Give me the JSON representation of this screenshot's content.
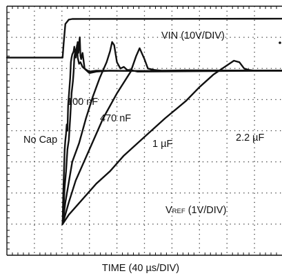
{
  "chart_data": {
    "type": "line",
    "xlabel": "TIME (40 µs/DIV)",
    "x_unit": "µs",
    "x_per_div": 40,
    "divisions": {
      "x": 10,
      "y": 8
    },
    "xlim": [
      0,
      400
    ],
    "grid": true,
    "trace_color": "#111111",
    "annotations": {
      "vin_label": "VIN (10V/DIV)",
      "vref_main": "V",
      "vref_sub": "REF",
      "vref_rest": " (1V/DIV)",
      "curve_labels": [
        "No Cap",
        "100 nF",
        "470 nF",
        "1 µF",
        "2.2 µF"
      ]
    },
    "series": [
      {
        "name": "VIN (10V/DIV)",
        "unit": "V",
        "ylim": [
          -70,
          10
        ],
        "points": [
          [
            0,
            -6.5
          ],
          [
            81,
            -6.5
          ],
          [
            82.5,
            -2
          ],
          [
            85,
            4.3
          ],
          [
            90,
            5.7
          ],
          [
            95,
            5.9
          ],
          [
            400,
            6
          ]
        ]
      },
      {
        "name": "No Cap",
        "unit": "V",
        "ylim": [
          -6,
          2
        ],
        "points": [
          [
            81,
            -5
          ],
          [
            82,
            -4
          ],
          [
            83,
            -3.3
          ],
          [
            84,
            -2.6
          ],
          [
            85,
            -2.3
          ],
          [
            86,
            -2.1
          ],
          [
            87,
            -1.8
          ],
          [
            88,
            -2.0
          ],
          [
            89,
            -1.2
          ],
          [
            90,
            -0.9
          ],
          [
            91,
            -0.6
          ],
          [
            92,
            -0.3
          ],
          [
            93,
            0.2
          ],
          [
            94,
            0.35
          ],
          [
            95,
            0.45
          ],
          [
            96,
            0.5
          ],
          [
            97,
            0.55
          ],
          [
            98,
            0.7
          ],
          [
            100,
            0.35
          ],
          [
            101,
            0.55
          ],
          [
            102,
            0.75
          ],
          [
            103,
            0.35
          ],
          [
            105,
            0.15
          ],
          [
            107,
            0.2
          ],
          [
            110,
            0.05
          ],
          [
            115,
            -0.05
          ],
          [
            120,
            -0.15
          ],
          [
            130,
            -0.1
          ],
          [
            150,
            -0.07
          ],
          [
            200,
            -0.08
          ],
          [
            260,
            -0.06
          ],
          [
            400,
            -0.07
          ]
        ]
      },
      {
        "name": "100 nF",
        "unit": "V",
        "ylim": [
          -6,
          2
        ],
        "points": [
          [
            81,
            -5
          ],
          [
            84,
            -3.8
          ],
          [
            86,
            -3.3
          ],
          [
            88,
            -2.6
          ],
          [
            90,
            -2.3
          ],
          [
            92,
            -1.6
          ],
          [
            94,
            -0.8
          ],
          [
            96,
            -0.4
          ],
          [
            97,
            -0.1
          ],
          [
            98,
            0.35
          ],
          [
            99,
            0.5
          ],
          [
            100,
            0.55
          ],
          [
            102,
            0.7
          ],
          [
            103,
            0.85
          ],
          [
            104,
            0.5
          ],
          [
            105,
            0.8
          ],
          [
            106,
            1.0
          ],
          [
            107,
            0.4
          ],
          [
            108,
            0.3
          ],
          [
            110,
            0.5
          ],
          [
            113,
            0.0
          ],
          [
            116,
            -0.05
          ],
          [
            120,
            -0.1
          ],
          [
            130,
            -0.07
          ],
          [
            200,
            -0.08
          ],
          [
            400,
            -0.07
          ]
        ]
      },
      {
        "name": "470 nF",
        "unit": "V",
        "ylim": [
          -6,
          2
        ],
        "points": [
          [
            81,
            -5
          ],
          [
            85,
            -4.3
          ],
          [
            95,
            -3.0
          ],
          [
            105,
            -2.4
          ],
          [
            115,
            -1.6
          ],
          [
            125,
            -0.9
          ],
          [
            135,
            -0.3
          ],
          [
            145,
            0.2
          ],
          [
            150,
            0.55
          ],
          [
            153,
            0.85
          ],
          [
            156,
            0.75
          ],
          [
            160,
            0.2
          ],
          [
            165,
            0.0
          ],
          [
            170,
            0.05
          ],
          [
            175,
            -0.05
          ],
          [
            180,
            -0.05
          ],
          [
            190,
            -0.1
          ],
          [
            400,
            -0.07
          ]
        ]
      },
      {
        "name": "1 µF",
        "unit": "V",
        "ylim": [
          -6,
          2
        ],
        "points": [
          [
            81,
            -5
          ],
          [
            90,
            -4.3
          ],
          [
            100,
            -3.6
          ],
          [
            120,
            -2.6
          ],
          [
            140,
            -1.6
          ],
          [
            160,
            -0.8
          ],
          [
            180,
            -0.1
          ],
          [
            188,
            0.4
          ],
          [
            193,
            0.65
          ],
          [
            200,
            0.3
          ],
          [
            205,
            0.0
          ],
          [
            215,
            -0.05
          ],
          [
            225,
            -0.07
          ],
          [
            400,
            -0.07
          ]
        ]
      },
      {
        "name": "2.2 µF",
        "unit": "V",
        "ylim": [
          -6,
          2
        ],
        "points": [
          [
            81,
            -5
          ],
          [
            90,
            -4.7
          ],
          [
            110,
            -4.2
          ],
          [
            130,
            -3.7
          ],
          [
            150,
            -3.3
          ],
          [
            170,
            -2.8
          ],
          [
            200,
            -2.2
          ],
          [
            230,
            -1.6
          ],
          [
            260,
            -1.05
          ],
          [
            280,
            -0.6
          ],
          [
            300,
            -0.2
          ],
          [
            320,
            0.1
          ],
          [
            330,
            0.25
          ],
          [
            338,
            0.2
          ],
          [
            345,
            0.0
          ],
          [
            352,
            -0.05
          ],
          [
            360,
            -0.07
          ],
          [
            400,
            -0.07
          ]
        ]
      }
    ]
  }
}
